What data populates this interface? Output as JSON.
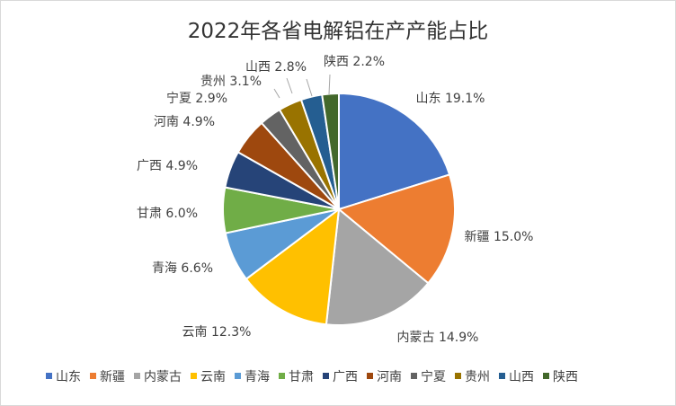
{
  "chart_data": {
    "type": "pie",
    "title": "2022年各省电解铝在产产能占比",
    "start_angle_deg": 0,
    "direction": "clockwise",
    "legend_position": "bottom",
    "slices": [
      {
        "name": "山东",
        "value": 19.1,
        "label": "山东 19.1%",
        "color": "#4472C4"
      },
      {
        "name": "新疆",
        "value": 15.0,
        "label": "新疆 15.0%",
        "color": "#ED7D31"
      },
      {
        "name": "内蒙古",
        "value": 14.9,
        "label": "内蒙古 14.9%",
        "color": "#A5A5A5"
      },
      {
        "name": "云南",
        "value": 12.3,
        "label": "云南 12.3%",
        "color": "#FFC000"
      },
      {
        "name": "青海",
        "value": 6.6,
        "label": "青海 6.6%",
        "color": "#5B9BD5"
      },
      {
        "name": "甘肃",
        "value": 6.0,
        "label": "甘肃 6.0%",
        "color": "#70AD47"
      },
      {
        "name": "广西",
        "value": 4.9,
        "label": "广西 4.9%",
        "color": "#264478"
      },
      {
        "name": "河南",
        "value": 4.9,
        "label": "河南 4.9%",
        "color": "#9E480E"
      },
      {
        "name": "宁夏",
        "value": 2.9,
        "label": "宁夏 2.9%",
        "color": "#636363"
      },
      {
        "name": "贵州",
        "value": 3.1,
        "label": "贵州 3.1%",
        "color": "#997300"
      },
      {
        "name": "山西",
        "value": 2.8,
        "label": "山西 2.8%",
        "color": "#255E91"
      },
      {
        "name": "陕西",
        "value": 2.2,
        "label": "陕西 2.2%",
        "color": "#43682B"
      }
    ]
  }
}
